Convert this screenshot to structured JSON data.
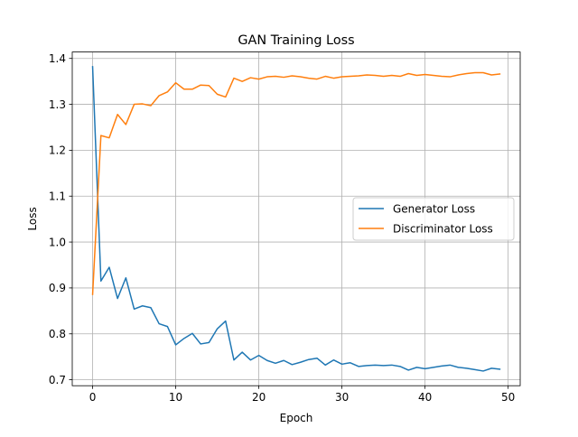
{
  "chart_data": {
    "type": "line",
    "title": "GAN Training Loss",
    "xlabel": "Epoch",
    "ylabel": "Loss",
    "xlim": [
      -2.45,
      51.45
    ],
    "ylim": [
      0.687,
      1.414
    ],
    "xticks": [
      0,
      10,
      20,
      30,
      40,
      50
    ],
    "yticks": [
      0.7,
      0.8,
      0.9,
      1.0,
      1.1,
      1.2,
      1.3,
      1.4
    ],
    "xtick_labels": [
      "0",
      "10",
      "20",
      "30",
      "40",
      "50"
    ],
    "ytick_labels": [
      "0.7",
      "0.8",
      "0.9",
      "1.0",
      "1.1",
      "1.2",
      "1.3",
      "1.4"
    ],
    "grid": true,
    "legend_position": "center-right",
    "x": [
      0,
      1,
      2,
      3,
      4,
      5,
      6,
      7,
      8,
      9,
      10,
      11,
      12,
      13,
      14,
      15,
      16,
      17,
      18,
      19,
      20,
      21,
      22,
      23,
      24,
      25,
      26,
      27,
      28,
      29,
      30,
      31,
      32,
      33,
      34,
      35,
      36,
      37,
      38,
      39,
      40,
      41,
      42,
      43,
      44,
      45,
      46,
      47,
      48,
      49
    ],
    "series": [
      {
        "name": "Generator Loss",
        "color": "#1f77b4",
        "values": [
          1.382,
          0.915,
          0.945,
          0.877,
          0.922,
          0.854,
          0.861,
          0.857,
          0.822,
          0.816,
          0.776,
          0.79,
          0.801,
          0.778,
          0.781,
          0.811,
          0.828,
          0.743,
          0.76,
          0.743,
          0.753,
          0.742,
          0.736,
          0.742,
          0.733,
          0.738,
          0.744,
          0.747,
          0.732,
          0.743,
          0.734,
          0.737,
          0.729,
          0.731,
          0.732,
          0.731,
          0.732,
          0.729,
          0.721,
          0.727,
          0.724,
          0.727,
          0.73,
          0.732,
          0.727,
          0.725,
          0.722,
          0.719,
          0.725,
          0.723
        ]
      },
      {
        "name": "Discriminator Loss",
        "color": "#ff7f0e",
        "values": [
          0.886,
          1.232,
          1.227,
          1.278,
          1.256,
          1.3,
          1.301,
          1.297,
          1.319,
          1.327,
          1.347,
          1.333,
          1.333,
          1.342,
          1.341,
          1.322,
          1.316,
          1.357,
          1.35,
          1.358,
          1.355,
          1.36,
          1.361,
          1.359,
          1.362,
          1.36,
          1.357,
          1.355,
          1.361,
          1.357,
          1.36,
          1.361,
          1.362,
          1.364,
          1.363,
          1.361,
          1.363,
          1.361,
          1.367,
          1.363,
          1.365,
          1.363,
          1.361,
          1.36,
          1.364,
          1.367,
          1.369,
          1.369,
          1.364,
          1.366
        ]
      }
    ]
  }
}
